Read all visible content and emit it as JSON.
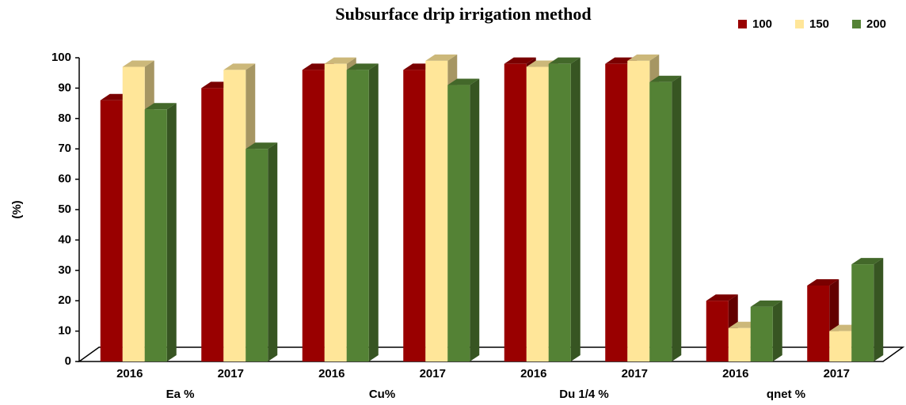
{
  "chart_data": {
    "type": "bar3d",
    "title": "Subsurface drip irrigation method",
    "y_label": "(%)",
    "categories": [
      "2016",
      "2017",
      "2016",
      "2017",
      "2016",
      "2017",
      "2016",
      "2017"
    ],
    "groups": [
      "Ea %",
      "Cu%",
      "Du 1/4 %",
      "qnet %"
    ],
    "series": [
      {
        "name": "100",
        "color": "#990000",
        "values": [
          86,
          90,
          96,
          96,
          98,
          98,
          20,
          25
        ]
      },
      {
        "name": "150",
        "color": "#ffe699",
        "values": [
          97,
          96,
          98,
          99,
          97,
          99,
          11,
          10
        ]
      },
      {
        "name": "200",
        "color": "#548235",
        "values": [
          83,
          70,
          96,
          91,
          98,
          92,
          18,
          32
        ]
      }
    ],
    "ylim": [
      0,
      100
    ],
    "yticks": [
      0,
      10,
      20,
      30,
      40,
      50,
      60,
      70,
      80,
      90,
      100
    ],
    "grid": false
  }
}
